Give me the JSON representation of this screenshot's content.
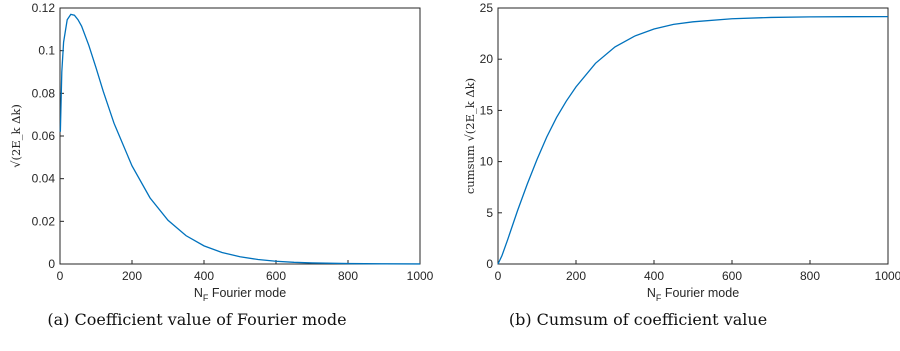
{
  "chart_data": [
    {
      "type": "line",
      "caption": "(a) Coefficient value of Fourier mode",
      "xlabel": "N_F Fourier mode",
      "xlabel_main": "N",
      "xlabel_sub": "F",
      "xlabel_rest": " Fourier mode",
      "ylabel": "√(2E_k Δk)",
      "xlim": [
        0,
        1000
      ],
      "ylim": [
        0,
        0.12
      ],
      "xticks": [
        "0",
        "200",
        "400",
        "600",
        "800",
        "1000"
      ],
      "yticks": [
        "0",
        "0.02",
        "0.04",
        "0.06",
        "0.08",
        "0.1",
        "0.12"
      ],
      "grid": false,
      "series": [
        {
          "color": "#0072bd",
          "x": [
            1,
            5,
            10,
            20,
            30,
            40,
            50,
            60,
            80,
            100,
            120,
            150,
            200,
            250,
            300,
            350,
            400,
            450,
            500,
            550,
            600,
            650,
            700,
            800,
            900,
            1000
          ],
          "y": [
            0.062,
            0.09,
            0.104,
            0.1145,
            0.117,
            0.1166,
            0.1145,
            0.1115,
            0.1025,
            0.092,
            0.081,
            0.066,
            0.046,
            0.031,
            0.0205,
            0.0133,
            0.0085,
            0.0054,
            0.0034,
            0.0021,
            0.0013,
            0.0008,
            0.0005,
            0.0002,
            8e-05,
            3e-05
          ]
        }
      ]
    },
    {
      "type": "line",
      "caption": "(b) Cumsum of coefficient value",
      "xlabel": "N_F Fourier mode",
      "xlabel_main": "N",
      "xlabel_sub": "F",
      "xlabel_rest": " Fourier mode",
      "ylabel": "cumsum √(2E_k Δk)",
      "xlim": [
        0,
        1000
      ],
      "ylim": [
        0,
        25
      ],
      "xticks": [
        "0",
        "200",
        "400",
        "600",
        "800",
        "1000"
      ],
      "yticks": [
        "0",
        "5",
        "10",
        "15",
        "20",
        "25"
      ],
      "grid": false,
      "series": [
        {
          "color": "#0072bd",
          "x": [
            0,
            10,
            25,
            50,
            75,
            100,
            125,
            150,
            175,
            200,
            250,
            300,
            350,
            400,
            450,
            500,
            600,
            700,
            800,
            900,
            1000
          ],
          "y": [
            0,
            0.8,
            2.4,
            5.2,
            7.8,
            10.2,
            12.4,
            14.3,
            15.9,
            17.3,
            19.6,
            21.2,
            22.25,
            22.95,
            23.4,
            23.65,
            23.95,
            24.08,
            24.13,
            24.15,
            24.16
          ]
        }
      ]
    }
  ]
}
